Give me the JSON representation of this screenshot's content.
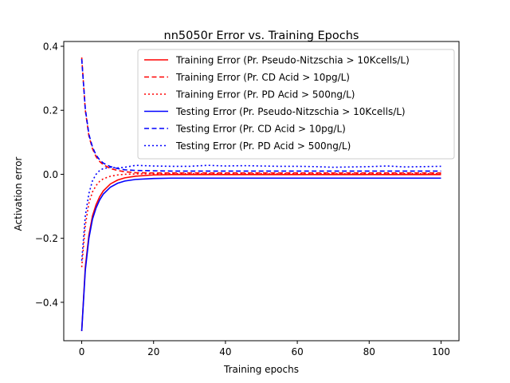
{
  "chart_data": {
    "type": "line",
    "title": "nn5050r Error vs. Training Epochs",
    "xlabel": "Training epochs",
    "ylabel": "Activation error",
    "xlim": [
      -5,
      105
    ],
    "ylim": [
      -0.52,
      0.415
    ],
    "xticks": [
      0,
      20,
      40,
      60,
      80,
      100
    ],
    "yticks": [
      -0.4,
      -0.2,
      0.0,
      0.2,
      0.4
    ],
    "xtick_labels": [
      "0",
      "20",
      "40",
      "60",
      "80",
      "100"
    ],
    "ytick_labels": [
      "−0.4",
      "−0.2",
      "0.0",
      "0.2",
      "0.4"
    ],
    "grid": false,
    "legend_position": "top-right",
    "series": [
      {
        "name": "Training Error (Pr. Pseudo-Nitzschia > 10Kcells/L)",
        "color": "#ff0000",
        "style": "solid",
        "x": [
          0,
          1,
          2,
          3,
          4,
          5,
          6,
          8,
          10,
          12,
          15,
          20,
          25,
          30,
          40,
          50,
          60,
          70,
          80,
          90,
          100
        ],
        "y": [
          -0.49,
          -0.29,
          -0.19,
          -0.13,
          -0.095,
          -0.07,
          -0.052,
          -0.03,
          -0.018,
          -0.011,
          -0.006,
          -0.002,
          -0.001,
          -0.001,
          -0.001,
          -0.001,
          -0.001,
          -0.001,
          -0.001,
          -0.001,
          -0.001
        ]
      },
      {
        "name": "Training Error (Pr. CD Acid > 10pg/L)",
        "color": "#ff0000",
        "style": "dashed",
        "x": [
          0,
          1,
          2,
          3,
          4,
          5,
          6,
          8,
          10,
          12,
          15,
          20,
          25,
          30,
          40,
          50,
          60,
          70,
          80,
          90,
          100
        ],
        "y": [
          0.365,
          0.2,
          0.12,
          0.08,
          0.055,
          0.04,
          0.03,
          0.018,
          0.012,
          0.008,
          0.005,
          0.004,
          0.004,
          0.004,
          0.004,
          0.004,
          0.004,
          0.004,
          0.004,
          0.004,
          0.004
        ]
      },
      {
        "name": "Training Error (Pr. PD Acid > 500ng/L)",
        "color": "#ff0000",
        "style": "dotted",
        "x": [
          0,
          1,
          2,
          3,
          4,
          5,
          6,
          8,
          10,
          12,
          15,
          20,
          25,
          30,
          40,
          50,
          60,
          70,
          80,
          90,
          100
        ],
        "y": [
          -0.29,
          -0.16,
          -0.09,
          -0.055,
          -0.035,
          -0.022,
          -0.014,
          -0.006,
          -0.002,
          0.0,
          0.001,
          0.002,
          0.002,
          0.002,
          0.002,
          0.002,
          0.002,
          0.002,
          0.002,
          0.002,
          0.002
        ]
      },
      {
        "name": "Testing Error (Pr. Pseudo-Nitzschia > 10Kcells/L)",
        "color": "#0000ff",
        "style": "solid",
        "x": [
          0,
          1,
          2,
          3,
          4,
          5,
          6,
          8,
          10,
          12,
          15,
          20,
          25,
          30,
          40,
          50,
          60,
          70,
          80,
          90,
          100
        ],
        "y": [
          -0.49,
          -0.3,
          -0.2,
          -0.14,
          -0.105,
          -0.08,
          -0.062,
          -0.04,
          -0.028,
          -0.021,
          -0.016,
          -0.013,
          -0.012,
          -0.012,
          -0.012,
          -0.012,
          -0.012,
          -0.012,
          -0.012,
          -0.012,
          -0.012
        ]
      },
      {
        "name": "Testing Error (Pr. CD Acid > 10pg/L)",
        "color": "#0000ff",
        "style": "dashed",
        "x": [
          0,
          1,
          2,
          3,
          4,
          5,
          6,
          8,
          10,
          12,
          15,
          20,
          25,
          30,
          40,
          50,
          60,
          70,
          80,
          90,
          100
        ],
        "y": [
          0.36,
          0.205,
          0.125,
          0.085,
          0.06,
          0.045,
          0.035,
          0.024,
          0.018,
          0.014,
          0.012,
          0.011,
          0.01,
          0.01,
          0.01,
          0.01,
          0.01,
          0.01,
          0.01,
          0.01,
          0.01
        ]
      },
      {
        "name": "Testing Error (Pr. PD Acid > 500ng/L)",
        "color": "#0000ff",
        "style": "dotted",
        "x": [
          0,
          1,
          2,
          3,
          4,
          5,
          6,
          8,
          10,
          12,
          15,
          20,
          25,
          30,
          35,
          40,
          45,
          50,
          55,
          60,
          65,
          70,
          75,
          80,
          85,
          90,
          95,
          100
        ],
        "y": [
          -0.27,
          -0.13,
          -0.06,
          -0.02,
          0.0,
          0.012,
          0.018,
          0.022,
          0.02,
          0.022,
          0.028,
          0.026,
          0.025,
          0.025,
          0.028,
          0.026,
          0.027,
          0.026,
          0.025,
          0.025,
          0.024,
          0.022,
          0.023,
          0.024,
          0.026,
          0.023,
          0.024,
          0.025
        ]
      }
    ]
  }
}
